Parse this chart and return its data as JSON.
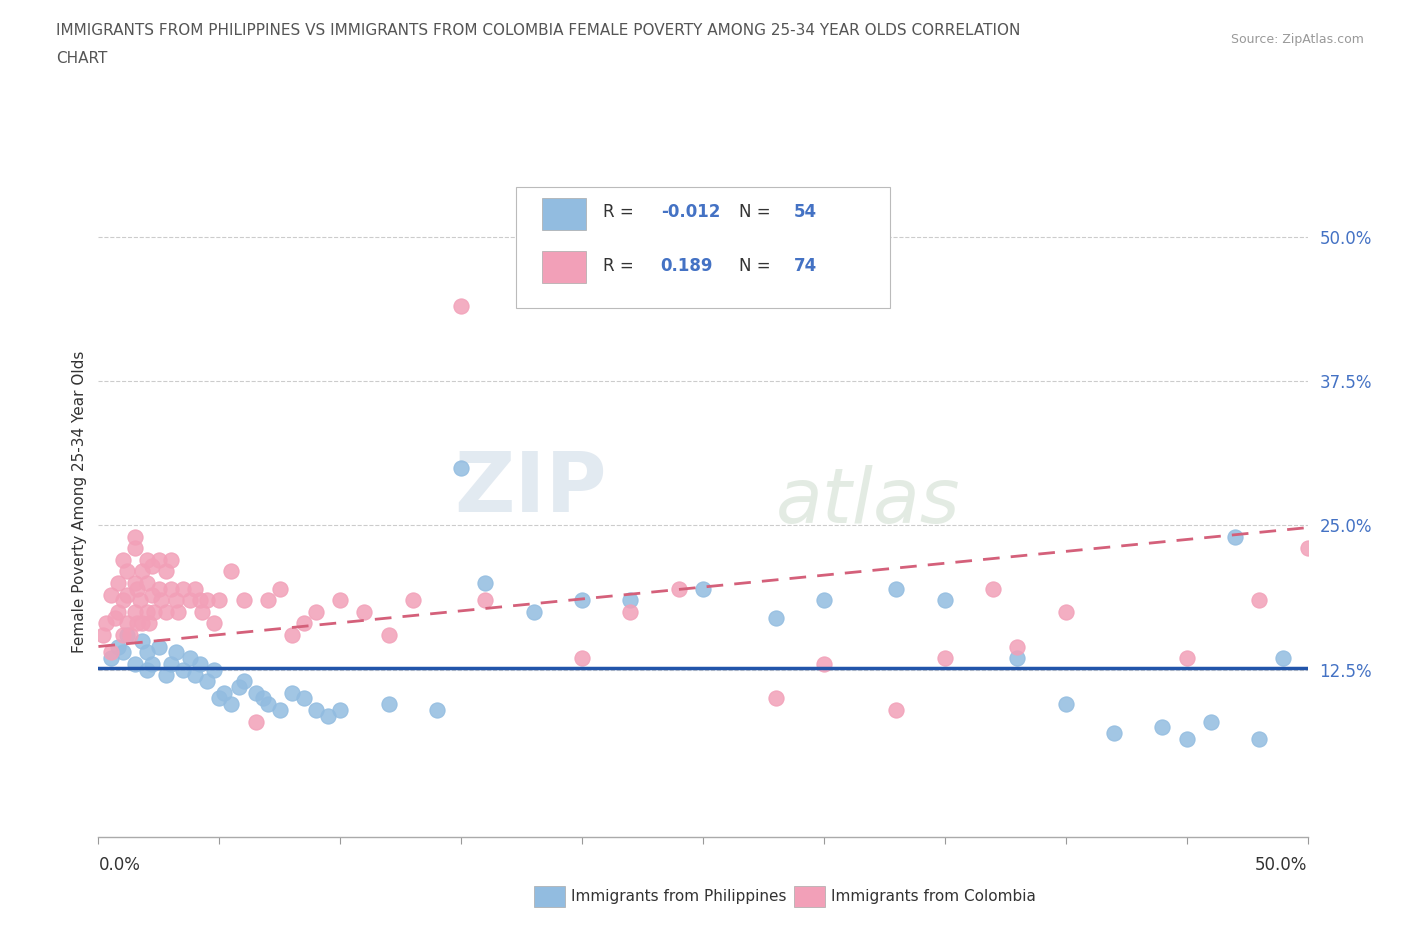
{
  "title_line1": "IMMIGRANTS FROM PHILIPPINES VS IMMIGRANTS FROM COLOMBIA FEMALE POVERTY AMONG 25-34 YEAR OLDS CORRELATION",
  "title_line2": "CHART",
  "source": "Source: ZipAtlas.com",
  "ylabel": "Female Poverty Among 25-34 Year Olds",
  "y_ticks": [
    0.0,
    0.125,
    0.25,
    0.375,
    0.5
  ],
  "y_tick_labels": [
    "",
    "12.5%",
    "25.0%",
    "37.5%",
    "50.0%"
  ],
  "x_range": [
    0.0,
    0.5
  ],
  "y_range": [
    -0.02,
    0.56
  ],
  "philippines_color": "#92bce0",
  "colombia_color": "#f2a0b8",
  "philippines_line_color": "#2255aa",
  "colombia_line_color": "#d4607a",
  "watermark_zip": "ZIP",
  "watermark_atlas": "atlas",
  "legend_label_1": "Immigrants from Philippines",
  "legend_label_2": "Immigrants from Colombia",
  "philippines_scatter": [
    [
      0.005,
      0.135
    ],
    [
      0.008,
      0.145
    ],
    [
      0.01,
      0.14
    ],
    [
      0.012,
      0.155
    ],
    [
      0.015,
      0.13
    ],
    [
      0.018,
      0.15
    ],
    [
      0.02,
      0.125
    ],
    [
      0.02,
      0.14
    ],
    [
      0.022,
      0.13
    ],
    [
      0.025,
      0.145
    ],
    [
      0.028,
      0.12
    ],
    [
      0.03,
      0.13
    ],
    [
      0.032,
      0.14
    ],
    [
      0.035,
      0.125
    ],
    [
      0.038,
      0.135
    ],
    [
      0.04,
      0.12
    ],
    [
      0.042,
      0.13
    ],
    [
      0.045,
      0.115
    ],
    [
      0.048,
      0.125
    ],
    [
      0.05,
      0.1
    ],
    [
      0.052,
      0.105
    ],
    [
      0.055,
      0.095
    ],
    [
      0.058,
      0.11
    ],
    [
      0.06,
      0.115
    ],
    [
      0.065,
      0.105
    ],
    [
      0.068,
      0.1
    ],
    [
      0.07,
      0.095
    ],
    [
      0.075,
      0.09
    ],
    [
      0.08,
      0.105
    ],
    [
      0.085,
      0.1
    ],
    [
      0.09,
      0.09
    ],
    [
      0.095,
      0.085
    ],
    [
      0.1,
      0.09
    ],
    [
      0.12,
      0.095
    ],
    [
      0.14,
      0.09
    ],
    [
      0.15,
      0.3
    ],
    [
      0.16,
      0.2
    ],
    [
      0.18,
      0.175
    ],
    [
      0.2,
      0.185
    ],
    [
      0.22,
      0.185
    ],
    [
      0.25,
      0.195
    ],
    [
      0.28,
      0.17
    ],
    [
      0.3,
      0.185
    ],
    [
      0.33,
      0.195
    ],
    [
      0.35,
      0.185
    ],
    [
      0.38,
      0.135
    ],
    [
      0.4,
      0.095
    ],
    [
      0.42,
      0.07
    ],
    [
      0.44,
      0.075
    ],
    [
      0.45,
      0.065
    ],
    [
      0.46,
      0.08
    ],
    [
      0.47,
      0.24
    ],
    [
      0.48,
      0.065
    ],
    [
      0.49,
      0.135
    ]
  ],
  "colombia_scatter": [
    [
      0.002,
      0.155
    ],
    [
      0.003,
      0.165
    ],
    [
      0.005,
      0.14
    ],
    [
      0.005,
      0.19
    ],
    [
      0.007,
      0.17
    ],
    [
      0.008,
      0.175
    ],
    [
      0.008,
      0.2
    ],
    [
      0.01,
      0.155
    ],
    [
      0.01,
      0.185
    ],
    [
      0.01,
      0.22
    ],
    [
      0.012,
      0.165
    ],
    [
      0.012,
      0.19
    ],
    [
      0.012,
      0.21
    ],
    [
      0.013,
      0.155
    ],
    [
      0.015,
      0.175
    ],
    [
      0.015,
      0.2
    ],
    [
      0.015,
      0.23
    ],
    [
      0.015,
      0.24
    ],
    [
      0.016,
      0.165
    ],
    [
      0.016,
      0.195
    ],
    [
      0.017,
      0.185
    ],
    [
      0.018,
      0.165
    ],
    [
      0.018,
      0.21
    ],
    [
      0.02,
      0.175
    ],
    [
      0.02,
      0.2
    ],
    [
      0.02,
      0.22
    ],
    [
      0.021,
      0.165
    ],
    [
      0.022,
      0.19
    ],
    [
      0.022,
      0.215
    ],
    [
      0.023,
      0.175
    ],
    [
      0.025,
      0.195
    ],
    [
      0.025,
      0.22
    ],
    [
      0.026,
      0.185
    ],
    [
      0.028,
      0.175
    ],
    [
      0.028,
      0.21
    ],
    [
      0.03,
      0.195
    ],
    [
      0.03,
      0.22
    ],
    [
      0.032,
      0.185
    ],
    [
      0.033,
      0.175
    ],
    [
      0.035,
      0.195
    ],
    [
      0.038,
      0.185
    ],
    [
      0.04,
      0.195
    ],
    [
      0.042,
      0.185
    ],
    [
      0.043,
      0.175
    ],
    [
      0.045,
      0.185
    ],
    [
      0.048,
      0.165
    ],
    [
      0.05,
      0.185
    ],
    [
      0.055,
      0.21
    ],
    [
      0.06,
      0.185
    ],
    [
      0.065,
      0.08
    ],
    [
      0.07,
      0.185
    ],
    [
      0.075,
      0.195
    ],
    [
      0.08,
      0.155
    ],
    [
      0.085,
      0.165
    ],
    [
      0.09,
      0.175
    ],
    [
      0.1,
      0.185
    ],
    [
      0.11,
      0.175
    ],
    [
      0.12,
      0.155
    ],
    [
      0.13,
      0.185
    ],
    [
      0.15,
      0.44
    ],
    [
      0.16,
      0.185
    ],
    [
      0.2,
      0.135
    ],
    [
      0.22,
      0.175
    ],
    [
      0.24,
      0.195
    ],
    [
      0.28,
      0.1
    ],
    [
      0.3,
      0.13
    ],
    [
      0.33,
      0.09
    ],
    [
      0.35,
      0.135
    ],
    [
      0.37,
      0.195
    ],
    [
      0.38,
      0.145
    ],
    [
      0.4,
      0.175
    ],
    [
      0.45,
      0.135
    ],
    [
      0.48,
      0.185
    ],
    [
      0.5,
      0.23
    ]
  ]
}
